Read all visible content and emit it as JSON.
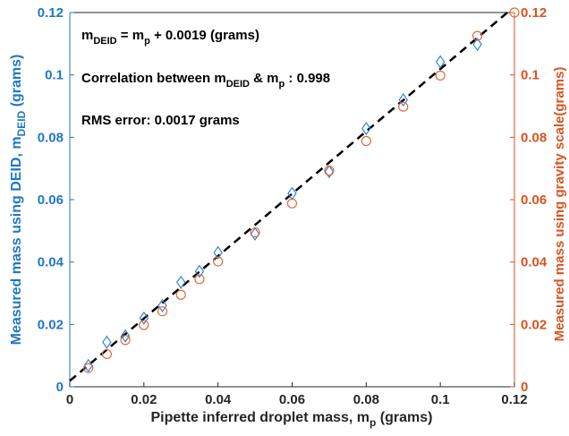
{
  "chart_data": {
    "type": "scatter",
    "x_label_main": "Pipette inferred droplet mass, m",
    "x_label_sub": "p",
    "x_label_unit": " (grams)",
    "y_left_label_main": "Measured mass using DEID, m",
    "y_left_label_sub": "DEID",
    "y_left_label_unit": " (grams)",
    "y_right_label": "Measured mass using gravity scale(grams)",
    "xlim": [
      0,
      0.12
    ],
    "ylim": [
      0,
      0.12
    ],
    "x_ticks": [
      "0",
      "0.02",
      "0.04",
      "0.06",
      "0.08",
      "0.1",
      "0.12"
    ],
    "y_left_ticks": [
      "0",
      "0.02",
      "0.04",
      "0.06",
      "0.08",
      "0.1",
      "0.12"
    ],
    "y_right_ticks": [
      "0",
      "0.02",
      "0.04",
      "0.06",
      "0.08",
      "0.1",
      "0.12"
    ],
    "grid": false,
    "colors": {
      "left_axis": "#1f77c4",
      "right_axis": "#d9531e",
      "deid_marker": "#2e86d1",
      "scale_marker": "#e06a3c",
      "fit_line": "#000000"
    },
    "series": [
      {
        "marker": "diamond",
        "axis": "left",
        "x": [
          0.005,
          0.01,
          0.015,
          0.02,
          0.025,
          0.03,
          0.035,
          0.04,
          0.05,
          0.06,
          0.07,
          0.08,
          0.09,
          0.1,
          0.11
        ],
        "y": [
          0.0068,
          0.0143,
          0.0163,
          0.022,
          0.026,
          0.0335,
          0.037,
          0.043,
          0.049,
          0.062,
          0.069,
          0.0828,
          0.092,
          0.1042,
          0.1098
        ]
      },
      {
        "marker": "circle",
        "axis": "right",
        "x": [
          0.005,
          0.01,
          0.015,
          0.02,
          0.025,
          0.03,
          0.035,
          0.04,
          0.05,
          0.06,
          0.07,
          0.08,
          0.09,
          0.1,
          0.11,
          0.12
        ],
        "y": [
          0.006,
          0.0105,
          0.015,
          0.0198,
          0.0242,
          0.0295,
          0.0345,
          0.0402,
          0.0495,
          0.0588,
          0.0693,
          0.0788,
          0.0898,
          0.0998,
          0.1125,
          0.12
        ]
      }
    ],
    "fit_line": {
      "style": "dashed",
      "slope": 1,
      "intercept": 0.0019
    },
    "annotations": {
      "fit": {
        "pre": "m",
        "sub": "DEID",
        "post": " = m",
        "sub2": "p",
        "tail": " + 0.0019 (grams)"
      },
      "correlation": {
        "pre": "Correlation between m",
        "sub": "DEID",
        "mid": " & m",
        "sub2": "p",
        "tail": " : 0.998"
      },
      "rms": "RMS error: 0.0017 grams"
    }
  }
}
